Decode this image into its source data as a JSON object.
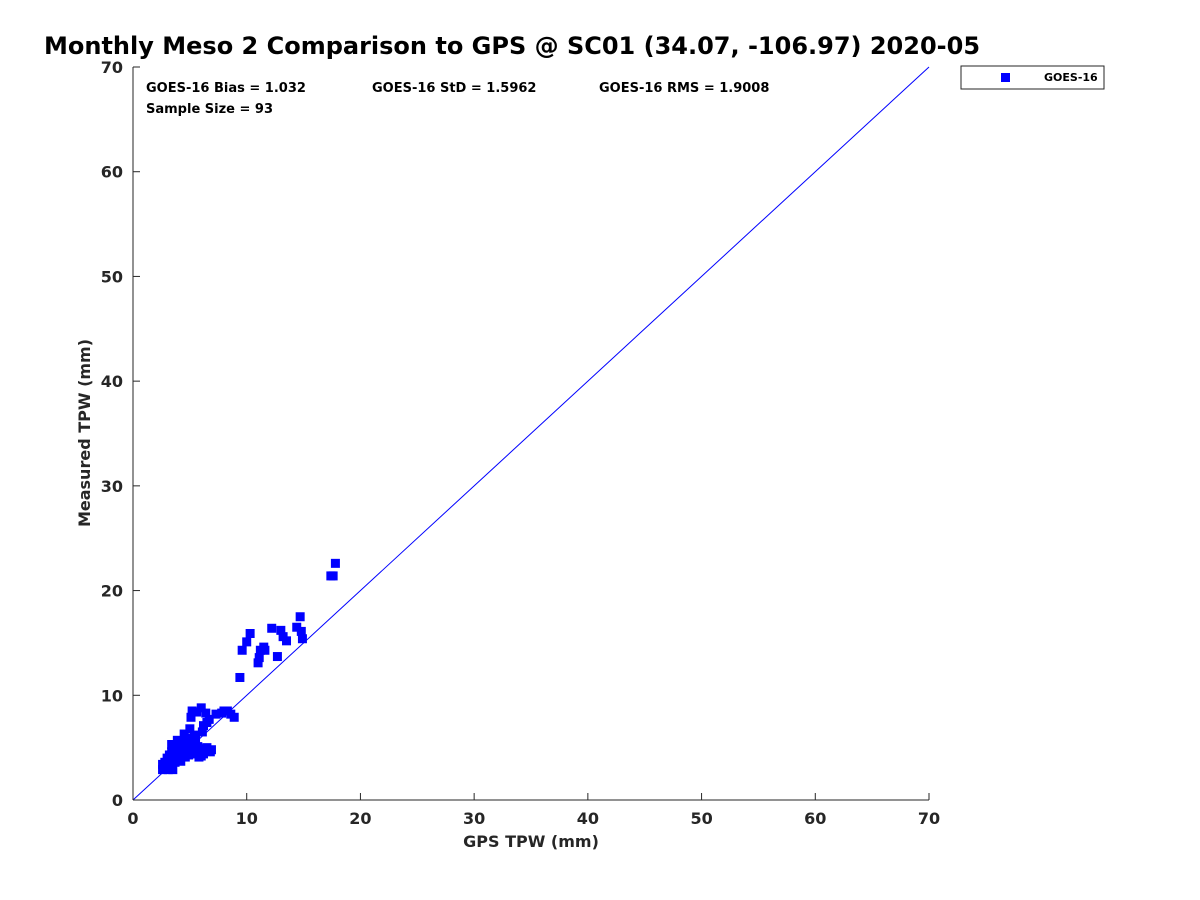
{
  "chart_data": {
    "type": "scatter",
    "title": "Monthly Meso 2 Comparison to GPS @ SC01 (34.07, -106.97) 2020-05",
    "xlabel": "GPS TPW (mm)",
    "ylabel": "Measured TPW (mm)",
    "xlim": [
      0,
      70
    ],
    "ylim": [
      0,
      70
    ],
    "xticks": [
      "0",
      "10",
      "20",
      "30",
      "40",
      "50",
      "60",
      "70"
    ],
    "yticks": [
      "0",
      "10",
      "20",
      "30",
      "40",
      "50",
      "60",
      "70"
    ],
    "grid": false,
    "legend_position": "top-right outside",
    "reference_line": {
      "from": [
        0,
        0
      ],
      "to": [
        70,
        70
      ],
      "color": "#0000ff"
    },
    "stats": {
      "bias": "GOES-16 Bias = 1.032",
      "std": "GOES-16 StD = 1.5962",
      "rms": "GOES-16 RMS = 1.9008",
      "sample": "Sample Size = 93"
    },
    "series": [
      {
        "name": "GOES-16",
        "color": "#0000ff",
        "marker": "square",
        "points": [
          [
            2.6,
            3.4
          ],
          [
            2.6,
            2.9
          ],
          [
            2.8,
            3.1
          ],
          [
            3.0,
            4.0
          ],
          [
            3.1,
            2.9
          ],
          [
            3.3,
            3.2
          ],
          [
            3.3,
            3.8
          ],
          [
            3.4,
            4.6
          ],
          [
            3.4,
            5.3
          ],
          [
            3.5,
            2.9
          ],
          [
            3.6,
            4.2
          ],
          [
            3.7,
            3.6
          ],
          [
            3.7,
            5.0
          ],
          [
            3.8,
            4.4
          ],
          [
            3.9,
            5.7
          ],
          [
            4.0,
            3.9
          ],
          [
            4.1,
            4.7
          ],
          [
            4.1,
            5.3
          ],
          [
            4.2,
            3.7
          ],
          [
            4.3,
            4.9
          ],
          [
            4.4,
            5.6
          ],
          [
            4.4,
            4.3
          ],
          [
            4.5,
            6.3
          ],
          [
            4.6,
            4.1
          ],
          [
            4.6,
            5.0
          ],
          [
            4.7,
            4.6
          ],
          [
            4.8,
            5.4
          ],
          [
            4.9,
            4.3
          ],
          [
            5.0,
            6.8
          ],
          [
            5.0,
            4.7
          ],
          [
            5.1,
            7.9
          ],
          [
            5.2,
            4.5
          ],
          [
            5.2,
            8.5
          ],
          [
            5.3,
            5.0
          ],
          [
            5.4,
            4.4
          ],
          [
            5.5,
            5.8
          ],
          [
            5.6,
            8.4
          ],
          [
            5.7,
            4.6
          ],
          [
            5.8,
            4.1
          ],
          [
            5.9,
            4.9
          ],
          [
            6.0,
            8.8
          ],
          [
            6.1,
            6.5
          ],
          [
            6.2,
            4.4
          ],
          [
            6.2,
            7.1
          ],
          [
            6.3,
            4.7
          ],
          [
            6.4,
            8.3
          ],
          [
            6.5,
            7.4
          ],
          [
            6.6,
            4.7
          ],
          [
            6.7,
            7.7
          ],
          [
            6.8,
            4.6
          ],
          [
            5.5,
            4.6
          ],
          [
            5.8,
            4.8
          ],
          [
            6.0,
            4.2
          ],
          [
            4.8,
            4.7
          ],
          [
            4.2,
            4.5
          ],
          [
            3.6,
            4.8
          ],
          [
            3.2,
            4.3
          ],
          [
            2.8,
            3.6
          ],
          [
            7.3,
            8.2
          ],
          [
            7.8,
            8.3
          ],
          [
            8.0,
            8.5
          ],
          [
            8.3,
            8.5
          ],
          [
            8.6,
            8.2
          ],
          [
            8.9,
            7.9
          ],
          [
            9.4,
            11.7
          ],
          [
            9.6,
            14.3
          ],
          [
            10.0,
            15.1
          ],
          [
            10.3,
            15.9
          ],
          [
            11.0,
            13.1
          ],
          [
            11.1,
            13.6
          ],
          [
            11.2,
            14.3
          ],
          [
            11.5,
            14.6
          ],
          [
            11.6,
            14.3
          ],
          [
            12.2,
            16.4
          ],
          [
            12.7,
            13.7
          ],
          [
            13.0,
            16.2
          ],
          [
            13.2,
            15.6
          ],
          [
            13.5,
            15.2
          ],
          [
            14.4,
            16.5
          ],
          [
            14.7,
            17.5
          ],
          [
            14.8,
            16.1
          ],
          [
            14.9,
            15.4
          ],
          [
            17.4,
            21.4
          ],
          [
            17.6,
            21.4
          ],
          [
            17.8,
            22.6
          ],
          [
            5.3,
            5.4
          ],
          [
            4.9,
            5.9
          ],
          [
            5.4,
            6.2
          ],
          [
            6.9,
            4.8
          ],
          [
            3.9,
            5.2
          ],
          [
            4.5,
            5.0
          ],
          [
            5.7,
            5.1
          ],
          [
            6.5,
            5.0
          ]
        ]
      }
    ]
  }
}
